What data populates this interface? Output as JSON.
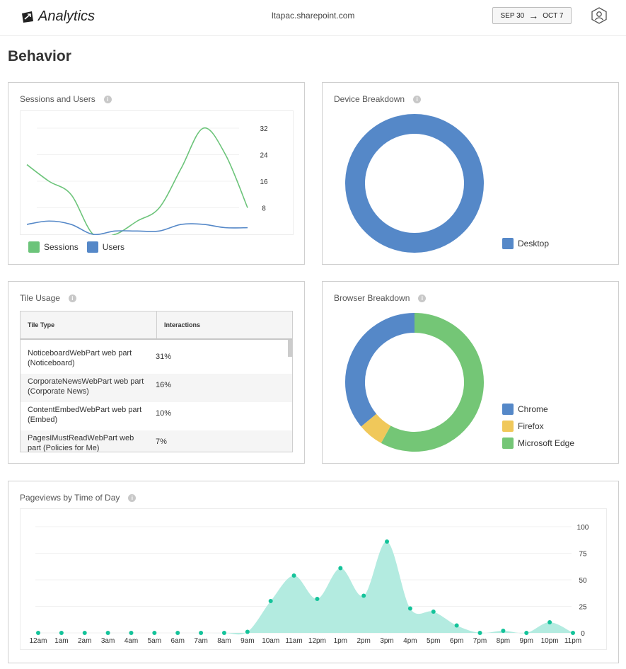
{
  "header": {
    "app_title": "Analytics",
    "site_url": "ltapac.sharepoint.com",
    "date_start": "SEP 30",
    "date_arrow": "→",
    "date_end": "OCT 7"
  },
  "page_title": "Behavior",
  "sessions_users": {
    "title": "Sessions and Users",
    "legend": [
      "Sessions",
      "Users"
    ]
  },
  "device": {
    "title": "Device Breakdown",
    "legend": [
      "Desktop"
    ]
  },
  "tile_usage": {
    "title": "Tile Usage",
    "columns": [
      "Tile Type",
      "Interactions"
    ],
    "rows": [
      {
        "type": "NoticeboardWebPart web part (Noticeboard)",
        "interactions": "31%"
      },
      {
        "type": "CorporateNewsWebPart web part (Corporate News)",
        "interactions": "16%"
      },
      {
        "type": "ContentEmbedWebPart web part (Embed)",
        "interactions": "10%"
      },
      {
        "type": "PagesIMustReadWebPart web part (Policies for Me)",
        "interactions": "7%"
      }
    ]
  },
  "browser": {
    "title": "Browser Breakdown",
    "legend": [
      "Chrome",
      "Firefox",
      "Microsoft Edge"
    ]
  },
  "pageviews": {
    "title": "Pageviews by Time of Day"
  },
  "colors": {
    "sessions": "#6cc47a",
    "users": "#5588c8",
    "desktop": "#5588c8",
    "chrome": "#5588c8",
    "firefox": "#f0c85a",
    "edge": "#74c676",
    "area_fill": "#b3ebe0",
    "dot": "#14c39a"
  },
  "chart_data": [
    {
      "type": "line",
      "title": "Sessions and Users",
      "x": [
        0,
        1,
        2,
        3,
        4,
        5,
        6,
        7,
        8,
        9,
        10
      ],
      "ylim": [
        0,
        32
      ],
      "yticks": [
        32,
        24,
        16,
        8
      ],
      "series": [
        {
          "name": "Sessions",
          "values": [
            21,
            16,
            12,
            0,
            0,
            4,
            8,
            20,
            32,
            24,
            8
          ]
        },
        {
          "name": "Users",
          "values": [
            3,
            4,
            3,
            0,
            1,
            1,
            1,
            3,
            3,
            2,
            2
          ]
        }
      ]
    },
    {
      "type": "pie",
      "title": "Device Breakdown",
      "categories": [
        "Desktop"
      ],
      "values": [
        100
      ]
    },
    {
      "type": "pie",
      "title": "Browser Breakdown",
      "categories": [
        "Chrome",
        "Firefox",
        "Microsoft Edge"
      ],
      "values": [
        36,
        6,
        58
      ]
    },
    {
      "type": "area",
      "title": "Pageviews by Time of Day",
      "categories": [
        "12am",
        "1am",
        "2am",
        "3am",
        "4am",
        "5am",
        "6am",
        "7am",
        "8am",
        "9am",
        "10am",
        "11am",
        "12pm",
        "1pm",
        "2pm",
        "3pm",
        "4pm",
        "5pm",
        "6pm",
        "7pm",
        "8pm",
        "9pm",
        "10pm",
        "11pm"
      ],
      "values": [
        0,
        0,
        0,
        0,
        0,
        0,
        0,
        0,
        0,
        1,
        30,
        54,
        32,
        61,
        35,
        86,
        23,
        20,
        7,
        0,
        2,
        0,
        10,
        0
      ],
      "ylim": [
        0,
        100
      ],
      "yticks": [
        100,
        75,
        50,
        25,
        0
      ]
    }
  ]
}
